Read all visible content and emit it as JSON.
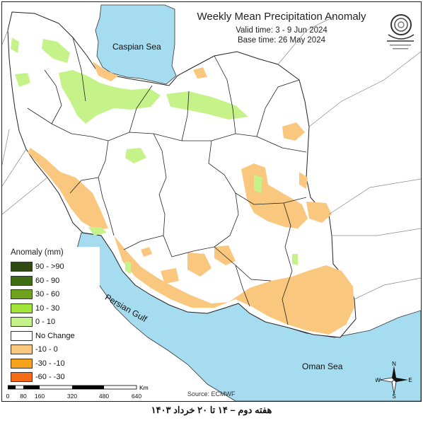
{
  "map": {
    "title": "Weekly Mean Precipitation Anomaly",
    "valid_time": "Valid time: 3 - 9 Jun 2024",
    "base_time": "Base time: 26 May 2024",
    "seas": {
      "caspian": "Caspian Sea",
      "persian_gulf": "Persian Gulf",
      "oman": "Oman Sea"
    },
    "colors": {
      "sea": "#a6dcef",
      "no_change": "#ffffff",
      "dry_light": "#f9c77e",
      "wet_light": "#c6f28a",
      "outside": "#ffffff"
    }
  },
  "legend": {
    "title": "Anomaly (mm)",
    "items": [
      {
        "label": "90 - >90",
        "color": "#2e4a10"
      },
      {
        "label": "60 - 90",
        "color": "#3f6e12"
      },
      {
        "label": "30 - 60",
        "color": "#6fa31d"
      },
      {
        "label": "10 - 30",
        "color": "#a2e639"
      },
      {
        "label": "0 - 10",
        "color": "#c6f28a"
      },
      {
        "label": "No Change",
        "color": "#ffffff"
      },
      {
        "label": "-10 - 0",
        "color": "#f9c77e"
      },
      {
        "label": "-30 - -10",
        "color": "#f7a21b"
      },
      {
        "label": "-60 - -30",
        "color": "#f56b13"
      }
    ]
  },
  "scale_bar": {
    "unit": "Km",
    "ticks": [
      "0",
      "80",
      "160",
      "320",
      "480",
      "640"
    ]
  },
  "source": "Source: ECMWF",
  "compass": {
    "n": "N",
    "s": "S",
    "e": "E",
    "w": "W"
  },
  "footer": "هفته دوم – ۱۴ تا ۲۰ خرداد ۱۴۰۳"
}
